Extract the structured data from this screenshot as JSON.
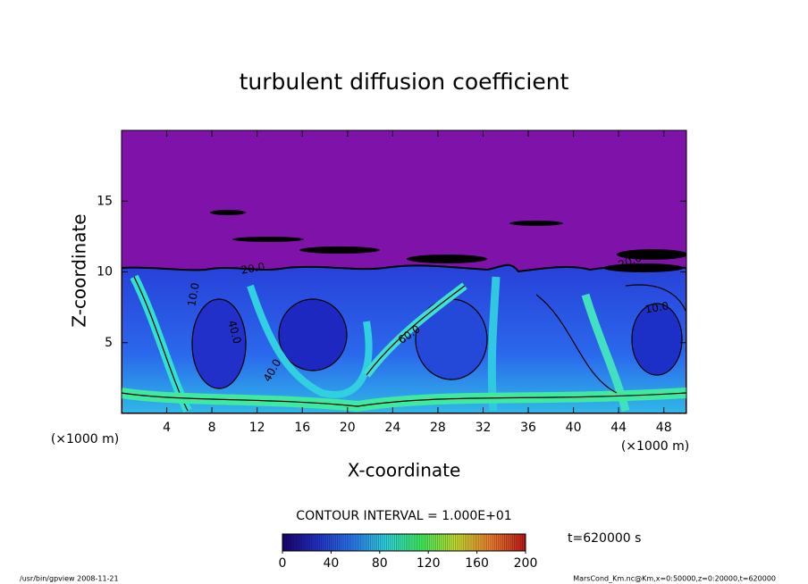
{
  "chart_data": {
    "type": "contour",
    "title": "turbulent diffusion coefficient",
    "x_label": "X-coordinate",
    "y_label": "Z-coordinate",
    "x_unit": "(×1000 m)",
    "y_unit": "(×1000 m)",
    "xlim": [
      0,
      50
    ],
    "xticks": [
      4,
      8,
      12,
      16,
      20,
      24,
      28,
      32,
      36,
      40,
      44,
      48
    ],
    "ylim": [
      0,
      20
    ],
    "yticks": [
      5,
      10,
      15
    ],
    "contour_labels": [
      "20.0",
      "20.0",
      "40.0",
      "40.0",
      "60.0",
      "10.0",
      "10.0"
    ],
    "contour_interval": "CONTOUR INTERVAL = 1.000E+01",
    "colorbar": {
      "lim": [
        0,
        200
      ],
      "ticks": [
        0,
        40,
        80,
        120,
        160,
        200
      ],
      "colormap": [
        "#1a0070",
        "#2232c8",
        "#2a78f0",
        "#30d8e0",
        "#40f060",
        "#c8e030",
        "#f08030",
        "#c01818"
      ]
    },
    "time_label": "t=620000 s",
    "footer_left": "/usr/bin/gpview   2008-11-21",
    "footer_right": "MarsCond_Km.nc@Km,x=0:50000,z=0:20000,t=620000"
  }
}
